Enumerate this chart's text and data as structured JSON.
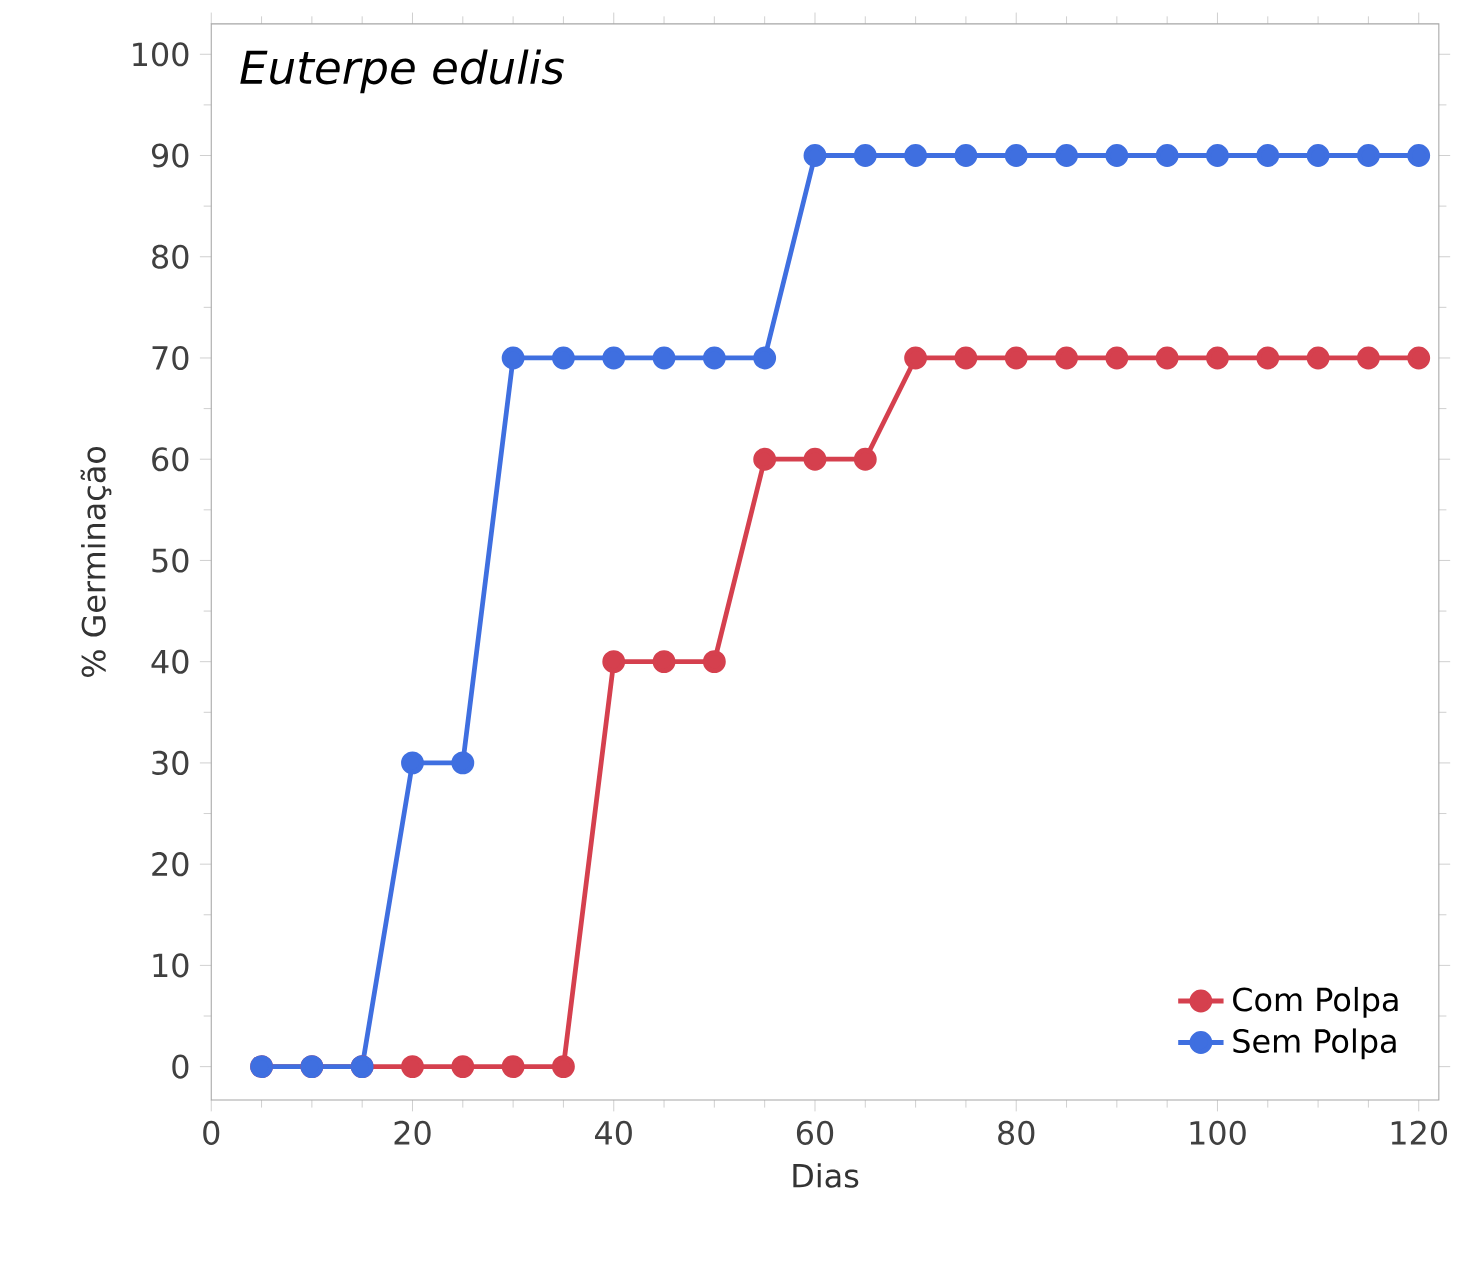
{
  "chart_data": {
    "type": "line",
    "title": "Euterpe edulis",
    "xlabel": "Dias",
    "ylabel": "% Germinação",
    "x": [
      5,
      10,
      15,
      20,
      25,
      30,
      35,
      40,
      45,
      50,
      55,
      60,
      65,
      70,
      75,
      80,
      85,
      90,
      95,
      100,
      105,
      110,
      115,
      120
    ],
    "series": [
      {
        "name": "Com Polpa",
        "color": "#d5404e",
        "values": [
          0,
          0,
          0,
          0,
          0,
          0,
          0,
          40,
          40,
          40,
          60,
          60,
          60,
          70,
          70,
          70,
          70,
          70,
          70,
          70,
          70,
          70,
          70,
          70
        ]
      },
      {
        "name": "Sem Polpa",
        "color": "#3f6fe0",
        "values": [
          0,
          0,
          0,
          30,
          30,
          70,
          70,
          70,
          70,
          70,
          70,
          90,
          90,
          90,
          90,
          90,
          90,
          90,
          90,
          90,
          90,
          90,
          90,
          90
        ]
      }
    ],
    "xlim": [
      0,
      122
    ],
    "ylim": [
      -3.3,
      103
    ],
    "xticks": [
      0,
      20,
      40,
      60,
      80,
      100,
      120
    ],
    "yticks": [
      0,
      10,
      20,
      30,
      40,
      50,
      60,
      70,
      80,
      90,
      100
    ],
    "legend": "bottom right",
    "marker": "circle",
    "line_style": "solid"
  }
}
